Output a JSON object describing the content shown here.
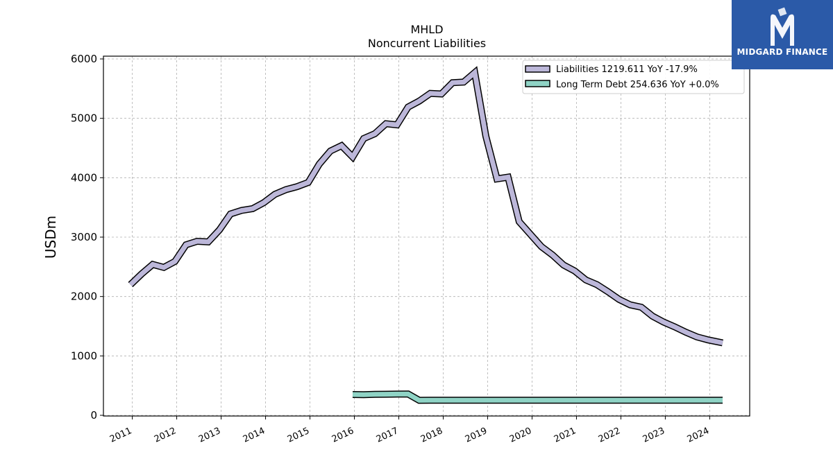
{
  "brand": {
    "name": "MIDGARD FINANCE",
    "color": "#2b5aa8"
  },
  "chart_data": {
    "type": "line",
    "title": "MHLD",
    "subtitle": "Noncurrent  Liabilities",
    "ylabel": "USDm",
    "xlabel": "",
    "ylim": [
      0,
      6000
    ],
    "xlim": [
      2010.35,
      2024.9
    ],
    "yticks": [
      0,
      1000,
      2000,
      3000,
      4000,
      5000,
      6000
    ],
    "xticks": [
      "2011",
      "2012",
      "2013",
      "2014",
      "2015",
      "2016",
      "2017",
      "2018",
      "2019",
      "2020",
      "2021",
      "2022",
      "2023",
      "2024"
    ],
    "grid": true,
    "legend_position": "top-right",
    "series": [
      {
        "name": "Liabilities  1219.611 YoY -17.9%",
        "color": "#bcb7d9",
        "x": [
          2010.96,
          2011.21,
          2011.46,
          2011.71,
          2011.96,
          2012.21,
          2012.46,
          2012.71,
          2012.96,
          2013.21,
          2013.46,
          2013.71,
          2013.96,
          2014.21,
          2014.46,
          2014.71,
          2014.96,
          2015.21,
          2015.46,
          2015.71,
          2015.96,
          2016.21,
          2016.46,
          2016.71,
          2016.96,
          2017.21,
          2017.46,
          2017.71,
          2017.96,
          2018.21,
          2018.46,
          2018.71,
          2018.96,
          2019.21,
          2019.46,
          2019.71,
          2019.96,
          2020.21,
          2020.46,
          2020.71,
          2020.96,
          2021.21,
          2021.46,
          2021.71,
          2021.96,
          2022.21,
          2022.46,
          2022.71,
          2022.96,
          2023.21,
          2023.46,
          2023.71,
          2023.96,
          2024.29
        ],
        "values": [
          2200,
          2380,
          2540,
          2490,
          2590,
          2870,
          2930,
          2920,
          3120,
          3390,
          3450,
          3480,
          3580,
          3720,
          3800,
          3850,
          3920,
          4230,
          4450,
          4540,
          4350,
          4660,
          4740,
          4910,
          4890,
          5190,
          5290,
          5420,
          5410,
          5600,
          5610,
          5770,
          4700,
          3980,
          4010,
          3260,
          3050,
          2840,
          2700,
          2530,
          2430,
          2280,
          2200,
          2080,
          1950,
          1860,
          1820,
          1670,
          1570,
          1490,
          1400,
          1320,
          1270,
          1220
        ]
      },
      {
        "name": "Long Term Debt  254.636 YoY +0.0%",
        "color": "#8fd3c5",
        "x": [
          2015.96,
          2016.21,
          2016.46,
          2016.71,
          2016.96,
          2017.21,
          2017.46,
          2017.71,
          2017.96,
          2018.21,
          2018.46,
          2018.71,
          2018.96,
          2019.21,
          2019.46,
          2019.71,
          2019.96,
          2020.21,
          2020.46,
          2020.71,
          2020.96,
          2021.21,
          2021.46,
          2021.71,
          2021.96,
          2022.21,
          2022.46,
          2022.71,
          2022.96,
          2023.21,
          2023.46,
          2023.71,
          2023.96,
          2024.29
        ],
        "values": [
          350,
          348,
          352,
          355,
          357,
          358,
          252,
          254,
          255,
          255,
          255,
          255,
          255,
          255,
          255,
          255,
          255,
          255,
          255,
          255,
          255,
          255,
          255,
          255,
          255,
          255,
          255,
          255,
          255,
          255,
          255,
          255,
          255,
          255
        ]
      }
    ]
  }
}
